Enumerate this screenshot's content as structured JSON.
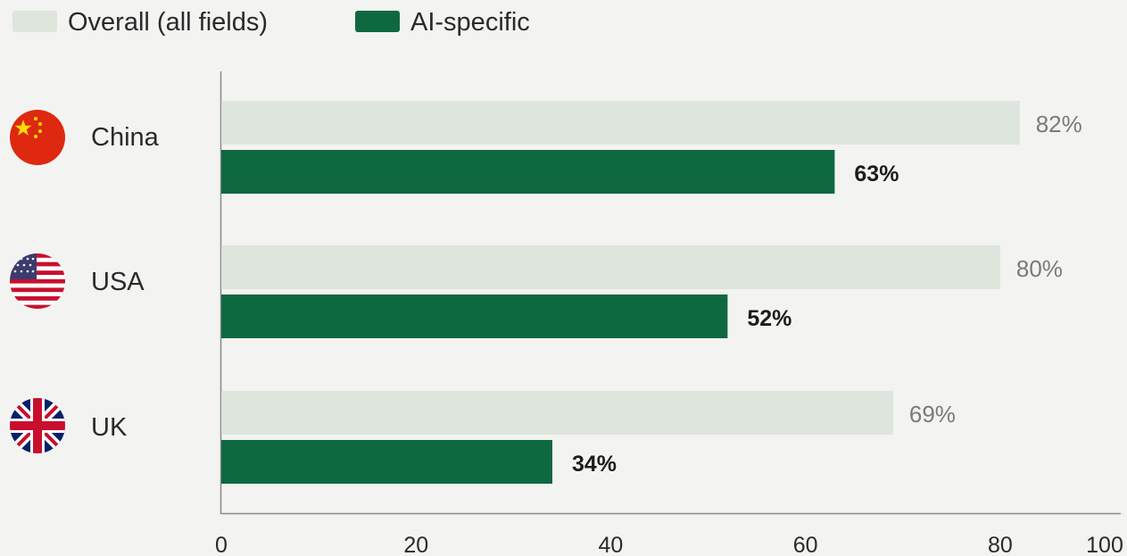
{
  "chart_data": {
    "type": "bar",
    "orientation": "horizontal",
    "categories": [
      "China",
      "USA",
      "UK"
    ],
    "series": [
      {
        "name": "Overall (all fields)",
        "values": [
          82,
          80,
          69
        ],
        "labels": [
          "82%",
          "80%",
          "69%"
        ],
        "color": "#dde5dc"
      },
      {
        "name": "AI-specific",
        "values": [
          63,
          52,
          34
        ],
        "labels": [
          "63%",
          "52%",
          "34%"
        ],
        "color": "#0e6840"
      }
    ],
    "xlim": [
      0,
      90
    ],
    "xticks": [
      0,
      20,
      40,
      60,
      80,
      100
    ],
    "title": "",
    "xlabel": "",
    "ylabel": "",
    "legend_position": "top-left",
    "grid": false,
    "category_icons": [
      "china-flag-icon",
      "usa-flag-icon",
      "uk-flag-icon"
    ]
  }
}
